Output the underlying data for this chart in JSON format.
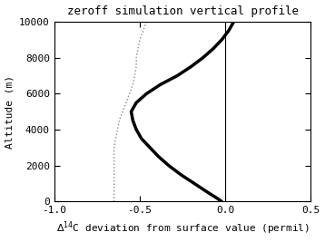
{
  "title": "zeroff simulation vertical profile",
  "xlabel": "\\u039414C deviation from surface value (permil)",
  "ylabel": "Altitude (m)",
  "xlim": [
    -1.0,
    0.5
  ],
  "ylim": [
    0,
    10000
  ],
  "xticks": [
    -1.0,
    -0.5,
    0.0,
    0.5
  ],
  "yticks": [
    0,
    2000,
    4000,
    6000,
    8000,
    10000
  ],
  "vline_x": 0.0,
  "thick_line": {
    "altitude": [
      0,
      200,
      500,
      1000,
      1500,
      2000,
      2500,
      3000,
      3500,
      4000,
      4500,
      5000,
      5500,
      6000,
      6500,
      7000,
      7500,
      8000,
      8500,
      9000,
      9500,
      10000
    ],
    "delta14c": [
      -0.02,
      -0.05,
      -0.1,
      -0.18,
      -0.26,
      -0.33,
      -0.39,
      -0.44,
      -0.49,
      -0.52,
      -0.54,
      -0.55,
      -0.52,
      -0.46,
      -0.38,
      -0.28,
      -0.2,
      -0.13,
      -0.07,
      -0.02,
      0.02,
      0.05
    ],
    "color": "#000000",
    "linewidth": 2.5
  },
  "dotted_line": {
    "altitude": [
      0,
      500,
      1000,
      1500,
      2000,
      2500,
      3000,
      3500,
      4000,
      4500,
      5000,
      5500,
      6000,
      6500,
      7000,
      7500,
      8000,
      8500,
      9000,
      9500,
      10000
    ],
    "delta14c": [
      -0.65,
      -0.65,
      -0.65,
      -0.65,
      -0.65,
      -0.65,
      -0.65,
      -0.64,
      -0.63,
      -0.62,
      -0.6,
      -0.58,
      -0.56,
      -0.54,
      -0.53,
      -0.52,
      -0.52,
      -0.51,
      -0.5,
      -0.48,
      -0.46
    ],
    "color": "#888888",
    "linewidth": 1.0,
    "linestyle": "dotted"
  },
  "background_color": "#ffffff",
  "title_fontsize": 9,
  "label_fontsize": 8,
  "tick_fontsize": 8
}
